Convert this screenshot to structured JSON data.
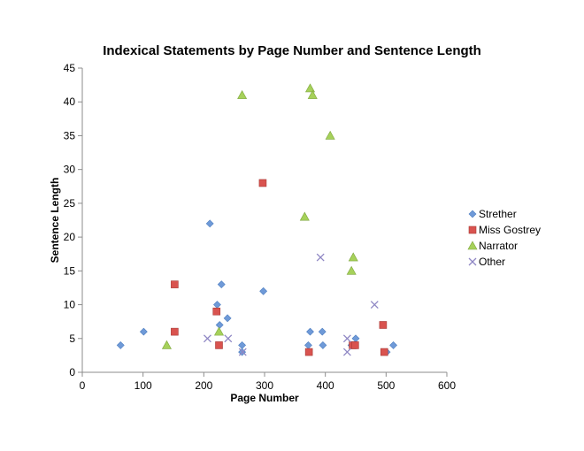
{
  "chart_data": {
    "type": "scatter",
    "title": "Indexical Statements by Page Number and Sentence Length",
    "xlabel": "Page Number",
    "ylabel": "Sentence Length",
    "xlim": [
      0,
      600
    ],
    "ylim": [
      0,
      45
    ],
    "x_ticks": [
      0,
      100,
      200,
      300,
      400,
      500,
      600
    ],
    "y_ticks": [
      0,
      5,
      10,
      15,
      20,
      25,
      30,
      35,
      40,
      45
    ],
    "grid": false,
    "legend_position": "right",
    "series": [
      {
        "name": "Strether",
        "marker": "diamond",
        "color": "#6f9ad8",
        "points": [
          [
            63,
            4
          ],
          [
            101,
            6
          ],
          [
            210,
            22
          ],
          [
            222,
            10
          ],
          [
            226,
            7
          ],
          [
            229,
            13
          ],
          [
            239,
            8
          ],
          [
            263,
            4
          ],
          [
            263,
            3
          ],
          [
            298,
            12
          ],
          [
            372,
            4
          ],
          [
            375,
            6
          ],
          [
            395,
            6
          ],
          [
            396,
            4
          ],
          [
            443,
            4
          ],
          [
            450,
            5
          ],
          [
            501,
            3
          ],
          [
            512,
            4
          ]
        ]
      },
      {
        "name": "Miss Gostrey",
        "marker": "square",
        "color": "#d9534f",
        "points": [
          [
            152,
            13
          ],
          [
            152,
            6
          ],
          [
            221,
            9
          ],
          [
            225,
            4
          ],
          [
            297,
            28
          ],
          [
            373,
            3
          ],
          [
            445,
            4
          ],
          [
            449,
            4
          ],
          [
            495,
            7
          ],
          [
            497,
            3
          ]
        ]
      },
      {
        "name": "Narrator",
        "marker": "triangle",
        "color": "#a6d15a",
        "points": [
          [
            139,
            4
          ],
          [
            225,
            6
          ],
          [
            263,
            41
          ],
          [
            366,
            23
          ],
          [
            375,
            42
          ],
          [
            379,
            41
          ],
          [
            408,
            35
          ],
          [
            443,
            15
          ],
          [
            446,
            17
          ]
        ]
      },
      {
        "name": "Other",
        "marker": "x",
        "color": "#8f87c4",
        "points": [
          [
            206,
            5
          ],
          [
            240,
            5
          ],
          [
            264,
            3
          ],
          [
            392,
            17
          ],
          [
            436,
            5
          ],
          [
            436,
            3
          ],
          [
            481,
            10
          ]
        ]
      }
    ]
  }
}
